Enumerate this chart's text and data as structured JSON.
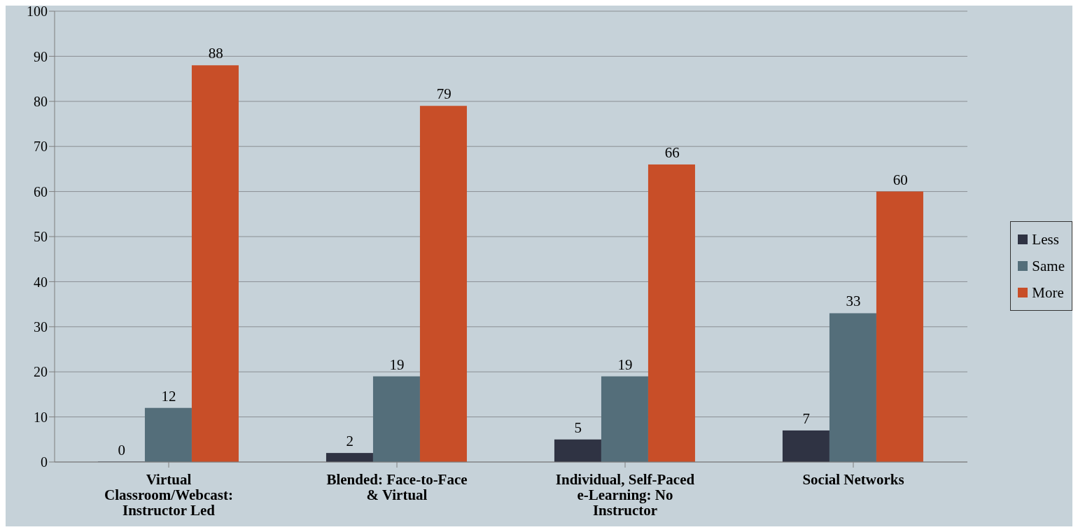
{
  "chart_data": {
    "type": "bar",
    "categories": [
      "Virtual Classroom/Webcast: Instructor Led",
      "Blended: Face-to-Face & Virtual",
      "Individual, Self-Paced e-Learning: No Instructor",
      "Social Networks"
    ],
    "series": [
      {
        "name": "Less",
        "color": "#2f3343",
        "values": [
          0,
          2,
          5,
          7
        ]
      },
      {
        "name": "Same",
        "color": "#546e7a",
        "values": [
          12,
          19,
          19,
          33
        ]
      },
      {
        "name": "More",
        "color": "#c84e28",
        "values": [
          88,
          79,
          66,
          60
        ]
      }
    ],
    "ylim": [
      0,
      100
    ],
    "yticks": [
      0,
      10,
      20,
      30,
      40,
      50,
      60,
      70,
      80,
      90,
      100
    ],
    "grid": "y",
    "legend": "right",
    "data_labels": true
  }
}
